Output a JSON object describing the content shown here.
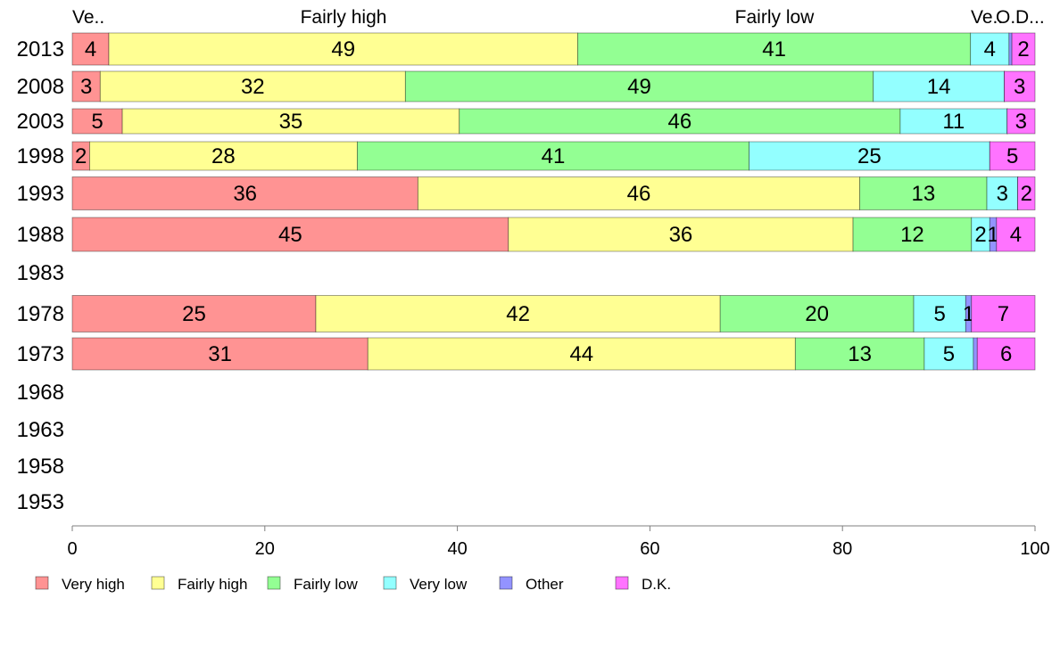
{
  "chart_data": {
    "type": "bar",
    "orientation": "horizontal",
    "stacked": true,
    "xlim": [
      0,
      100
    ],
    "x_ticks": [
      0,
      20,
      40,
      60,
      80,
      100
    ],
    "categories": [
      "2013",
      "2008",
      "2003",
      "1998",
      "1993",
      "1988",
      "1983",
      "1978",
      "1973",
      "1968",
      "1963",
      "1958",
      "1953"
    ],
    "series": [
      {
        "name": "Very high",
        "color": "#ff9393",
        "values": [
          3.8,
          2.9,
          5.2,
          1.8,
          35.9,
          45.3,
          null,
          25.3,
          30.7,
          null,
          null,
          null,
          null
        ],
        "labels": [
          "4",
          "3",
          "5",
          "2",
          "36",
          "45",
          "",
          "25",
          "31",
          "",
          "",
          "",
          ""
        ]
      },
      {
        "name": "Fairly high",
        "color": "#ffff93",
        "values": [
          48.7,
          31.7,
          35.0,
          27.8,
          45.9,
          35.8,
          null,
          42.0,
          44.4,
          null,
          null,
          null,
          null
        ],
        "labels": [
          "49",
          "32",
          "35",
          "28",
          "46",
          "36",
          "",
          "42",
          "44",
          "",
          "",
          "",
          ""
        ]
      },
      {
        "name": "Fairly low",
        "color": "#93ff93",
        "values": [
          40.8,
          48.6,
          45.8,
          40.7,
          13.2,
          12.3,
          null,
          20.1,
          13.4,
          null,
          null,
          null,
          null
        ],
        "labels": [
          "41",
          "49",
          "46",
          "41",
          "13",
          "12",
          "",
          "20",
          "13",
          "",
          "",
          "",
          ""
        ]
      },
      {
        "name": "Very low",
        "color": "#93ffff",
        "values": [
          4.0,
          13.6,
          11.1,
          25.0,
          3.2,
          1.9,
          null,
          5.4,
          5.1,
          null,
          null,
          null,
          null
        ],
        "labels": [
          "4",
          "14",
          "11",
          "25",
          "3",
          "2",
          "",
          "5",
          "5",
          "",
          "",
          "",
          ""
        ]
      },
      {
        "name": "Other",
        "color": "#9393ff",
        "values": [
          0.3,
          0.0,
          0.0,
          0.0,
          0.0,
          0.7,
          null,
          0.6,
          0.4,
          null,
          null,
          null,
          null
        ],
        "labels": [
          "",
          "",
          "",
          "",
          "",
          "1",
          "",
          "1",
          "",
          "",
          "",
          "",
          ""
        ]
      },
      {
        "name": "D.K.",
        "color": "#ff73ff",
        "values": [
          2.4,
          3.2,
          2.9,
          4.7,
          1.8,
          4.0,
          null,
          6.6,
          6.0,
          null,
          null,
          null,
          null
        ],
        "labels": [
          "2",
          "3",
          "3",
          "5",
          "2",
          "4",
          "",
          "7",
          "6",
          "",
          "",
          "",
          ""
        ]
      }
    ],
    "top_labels": [
      "Ve..",
      "Fairly high",
      "Fairly low",
      "Ve..",
      "O..",
      "D..."
    ],
    "legend_position": "bottom-left",
    "grid": false
  }
}
